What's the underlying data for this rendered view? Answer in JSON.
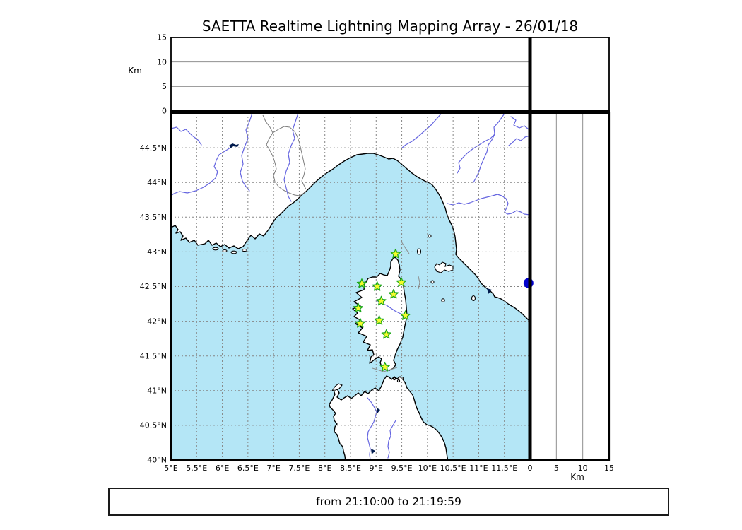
{
  "title": "SAETTA Realtime Lightning Mapping Array - 26/01/18",
  "footer": "from 21:10:00 to 21:19:59",
  "axes": {
    "map": {
      "lon_range": [
        5,
        12
      ],
      "lat_range": [
        40,
        45
      ],
      "lon_ticks": [
        {
          "v": 5,
          "label": "5°E"
        },
        {
          "v": 5.5,
          "label": "5.5°E"
        },
        {
          "v": 6,
          "label": "6°E"
        },
        {
          "v": 6.5,
          "label": "6.5°E"
        },
        {
          "v": 7,
          "label": "7°E"
        },
        {
          "v": 7.5,
          "label": "7.5°E"
        },
        {
          "v": 8,
          "label": "8°E"
        },
        {
          "v": 8.5,
          "label": "8.5°E"
        },
        {
          "v": 9,
          "label": "9°E"
        },
        {
          "v": 9.5,
          "label": "9.5°E"
        },
        {
          "v": 10,
          "label": "10°E"
        },
        {
          "v": 10.5,
          "label": "10.5°E"
        },
        {
          "v": 11,
          "label": "11°E"
        },
        {
          "v": 11.5,
          "label": "11.5°E"
        }
      ],
      "lat_ticks": [
        {
          "v": 44.5,
          "label": "44.5°N"
        },
        {
          "v": 44,
          "label": "44°N"
        },
        {
          "v": 43.5,
          "label": "43.5°N"
        },
        {
          "v": 43,
          "label": "43°N"
        },
        {
          "v": 42.5,
          "label": "42.5°N"
        },
        {
          "v": 42,
          "label": "42°N"
        },
        {
          "v": 41.5,
          "label": "41.5°N"
        },
        {
          "v": 41,
          "label": "41°N"
        },
        {
          "v": 40.5,
          "label": "40.5°N"
        },
        {
          "v": 40,
          "label": "40°N"
        }
      ]
    },
    "altitude": {
      "unit": "Km",
      "range": [
        0,
        15
      ],
      "ticks": [
        {
          "v": 0,
          "label": "0"
        },
        {
          "v": 5,
          "label": "5"
        },
        {
          "v": 10,
          "label": "10"
        },
        {
          "v": 15,
          "label": "15"
        }
      ],
      "gridlines": [
        5,
        10
      ]
    }
  },
  "stations": [
    {
      "lon": 9.38,
      "lat": 42.97
    },
    {
      "lon": 8.72,
      "lat": 42.54
    },
    {
      "lon": 9.02,
      "lat": 42.5
    },
    {
      "lon": 9.49,
      "lat": 42.56
    },
    {
      "lon": 9.34,
      "lat": 42.39
    },
    {
      "lon": 9.1,
      "lat": 42.29
    },
    {
      "lon": 8.65,
      "lat": 42.19
    },
    {
      "lon": 9.57,
      "lat": 42.08
    },
    {
      "lon": 9.06,
      "lat": 42.01
    },
    {
      "lon": 8.69,
      "lat": 41.97
    },
    {
      "lon": 9.2,
      "lat": 41.81
    },
    {
      "lon": 9.17,
      "lat": 41.34
    }
  ],
  "event_source": {
    "lon": 11.97,
    "lat": 42.55
  },
  "colors": {
    "ocean": "#b4e6f6",
    "land": "#ffffff",
    "coastline": "#000000",
    "river": "#6565e0",
    "admin_border": "#7d7d7d",
    "sea_mark": "#8c8c8c",
    "grid": "#858585",
    "panel_grid": "#909090",
    "lake": "#001a4d",
    "star_fill": "#f6fb2d",
    "star_edge": "#1ca81c",
    "event_dot": "#0000cc",
    "frame": "#000000"
  }
}
